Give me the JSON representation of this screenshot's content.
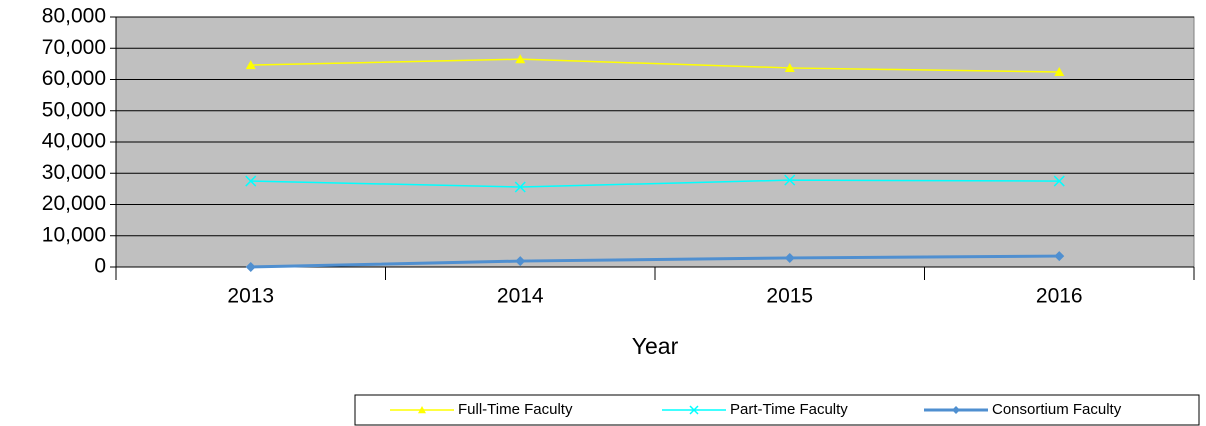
{
  "chart_data": {
    "type": "line",
    "x_label": "Year",
    "categories": [
      "2013",
      "2014",
      "2015",
      "2016"
    ],
    "series": [
      {
        "name": "Full-Time Faculty",
        "color": "#ffff00",
        "marker": "triangle",
        "values": [
          64600,
          66500,
          63700,
          62400
        ]
      },
      {
        "name": "Part-Time Faculty",
        "color": "#00ffff",
        "marker": "x",
        "values": [
          27500,
          25600,
          27800,
          27500
        ]
      },
      {
        "name": "Consortium Faculty",
        "color": "#4f8fd0",
        "marker": "diamond",
        "values": [
          0,
          1900,
          2900,
          3500
        ]
      }
    ],
    "ylim": [
      0,
      80000
    ],
    "yticks": [
      0,
      {
        "value": 10000,
        "label": "10,000"
      },
      {
        "value": 20000,
        "label": "20,000"
      },
      {
        "value": 30000,
        "label": "30,000"
      },
      {
        "value": 40000,
        "label": "40,000"
      },
      {
        "value": 50000,
        "label": "50,000"
      },
      {
        "value": 60000,
        "label": "60,000"
      },
      {
        "value": 70000,
        "label": "70,000"
      },
      {
        "value": 80000,
        "label": "80,000"
      }
    ],
    "grid": true,
    "plot_background": "#c0c0c0",
    "legend": "bottom"
  }
}
